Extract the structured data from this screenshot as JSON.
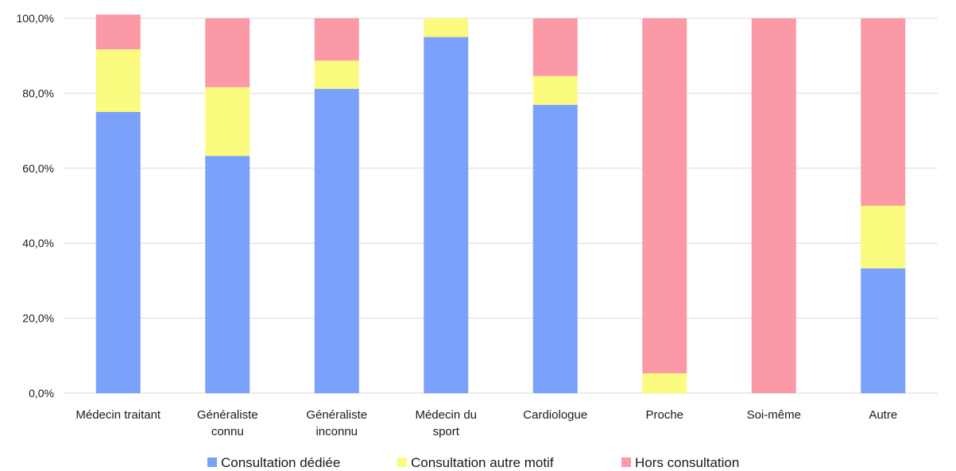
{
  "chart_data": {
    "type": "bar",
    "stacked": true,
    "title": "",
    "xlabel": "",
    "ylabel": "",
    "ylim": [
      0,
      100
    ],
    "y_ticks": [
      "0,0%",
      "20,0%",
      "40,0%",
      "60,0%",
      "80,0%",
      "100,0%"
    ],
    "y_tick_values": [
      0,
      20,
      40,
      60,
      80,
      100
    ],
    "grid": true,
    "legend_position": "bottom",
    "categories": [
      [
        "Médecin traitant"
      ],
      [
        "Généraliste",
        "connu"
      ],
      [
        "Généraliste",
        "inconnu"
      ],
      [
        "Médecin du",
        "sport"
      ],
      [
        "Cardiologue"
      ],
      [
        "Proche"
      ],
      [
        "Soi-même"
      ],
      [
        "Autre"
      ]
    ],
    "series": [
      {
        "name": "Consultation dédiée",
        "color": "#7ba1fb",
        "values": [
          75.0,
          63.3,
          81.2,
          95.0,
          76.9,
          0,
          0,
          33.3
        ]
      },
      {
        "name": "Consultation autre motif",
        "color": "#fbfb7f",
        "values": [
          16.7,
          18.3,
          7.5,
          5.0,
          7.7,
          5.3,
          0,
          16.7
        ]
      },
      {
        "name": "Hors consultation",
        "color": "#fb9aa6",
        "values": [
          9.3,
          18.4,
          11.3,
          0,
          15.4,
          94.7,
          100,
          50.0
        ]
      }
    ]
  }
}
